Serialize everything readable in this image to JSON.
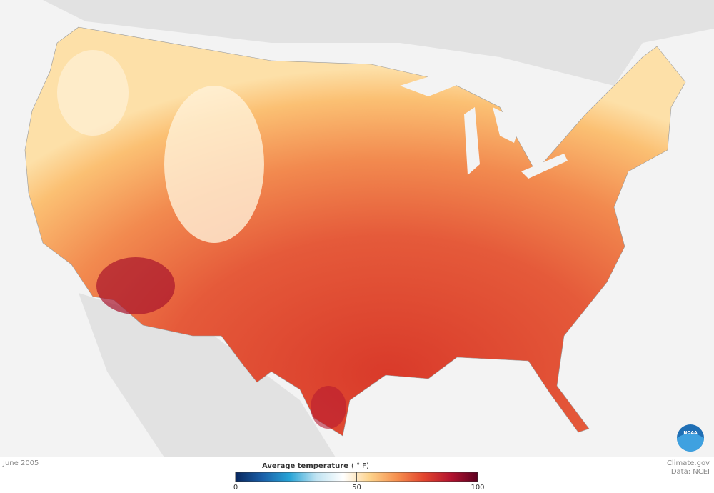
{
  "map": {
    "date": "June 2005",
    "credit": "Climate.gov",
    "source": "Data: NCEI",
    "logo": "NOAA",
    "legend": {
      "title": "Average temperature",
      "unit": "( ° F)",
      "lim": [
        0,
        100
      ],
      "ticks": [
        0,
        50,
        100
      ],
      "colors": [
        "#08275e",
        "#1a5fa8",
        "#27a3d6",
        "#bfe3f2",
        "#ffffff",
        "#fdd28a",
        "#f6904f",
        "#e2452e",
        "#b3132f",
        "#5c0020"
      ]
    }
  }
}
